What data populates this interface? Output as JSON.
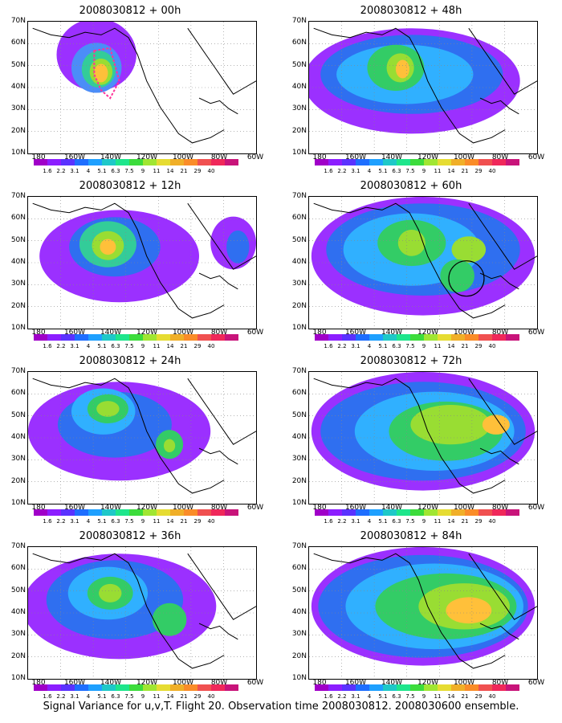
{
  "panels": [
    {
      "title": "2008030812 + 00h",
      "blobs": [
        [
          0.3,
          0.25,
          0.35,
          0.55,
          "#9b30ff"
        ],
        [
          0.3,
          0.35,
          0.22,
          0.38,
          "#4b8df8"
        ],
        [
          0.31,
          0.36,
          0.15,
          0.28,
          "#33cc99"
        ],
        [
          0.32,
          0.38,
          0.1,
          0.2,
          "#99dd33"
        ],
        [
          0.32,
          0.39,
          0.06,
          0.14,
          "#ffc03a"
        ]
      ],
      "marker": "box"
    },
    {
      "title": "2008030812 + 48h",
      "blobs": [
        [
          0.45,
          0.45,
          0.95,
          0.8,
          "#9b30ff"
        ],
        [
          0.45,
          0.4,
          0.8,
          0.6,
          "#2f6ff0"
        ],
        [
          0.42,
          0.4,
          0.6,
          0.45,
          "#30b0ff"
        ],
        [
          0.38,
          0.35,
          0.25,
          0.35,
          "#33cc66"
        ],
        [
          0.4,
          0.35,
          0.12,
          0.22,
          "#99dd33"
        ],
        [
          0.41,
          0.36,
          0.06,
          0.14,
          "#ffc03a"
        ]
      ]
    },
    {
      "title": "2008030812 + 12h",
      "blobs": [
        [
          0.4,
          0.45,
          0.7,
          0.7,
          "#9b30ff"
        ],
        [
          0.38,
          0.38,
          0.4,
          0.45,
          "#2f6ff0"
        ],
        [
          0.35,
          0.36,
          0.25,
          0.35,
          "#33cc99"
        ],
        [
          0.35,
          0.37,
          0.14,
          0.22,
          "#99dd33"
        ],
        [
          0.35,
          0.38,
          0.07,
          0.12,
          "#ffc03a"
        ],
        [
          0.9,
          0.35,
          0.2,
          0.4,
          "#9b30ff"
        ],
        [
          0.92,
          0.38,
          0.1,
          0.25,
          "#2f6ff0"
        ]
      ]
    },
    {
      "title": "2008030812 + 60h",
      "blobs": [
        [
          0.5,
          0.45,
          0.98,
          0.9,
          "#9b30ff"
        ],
        [
          0.5,
          0.4,
          0.85,
          0.7,
          "#2f6ff0"
        ],
        [
          0.45,
          0.4,
          0.6,
          0.55,
          "#30b0ff"
        ],
        [
          0.45,
          0.35,
          0.3,
          0.35,
          "#33cc66"
        ],
        [
          0.45,
          0.35,
          0.12,
          0.2,
          "#99dd33"
        ],
        [
          0.7,
          0.4,
          0.15,
          0.2,
          "#99dd33"
        ],
        [
          0.65,
          0.6,
          0.15,
          0.25,
          "#33cc66"
        ]
      ],
      "marker": "circle"
    },
    {
      "title": "2008030812 + 24h",
      "blobs": [
        [
          0.4,
          0.45,
          0.8,
          0.75,
          "#9b30ff"
        ],
        [
          0.38,
          0.4,
          0.5,
          0.5,
          "#2f6ff0"
        ],
        [
          0.33,
          0.3,
          0.28,
          0.35,
          "#30b0ff"
        ],
        [
          0.35,
          0.28,
          0.18,
          0.22,
          "#33cc66"
        ],
        [
          0.35,
          0.28,
          0.1,
          0.12,
          "#99dd33"
        ],
        [
          0.62,
          0.55,
          0.12,
          0.22,
          "#33cc66"
        ],
        [
          0.62,
          0.56,
          0.05,
          0.1,
          "#99dd33"
        ]
      ]
    },
    {
      "title": "2008030812 + 72h",
      "blobs": [
        [
          0.5,
          0.45,
          0.98,
          0.9,
          "#9b30ff"
        ],
        [
          0.5,
          0.45,
          0.9,
          0.75,
          "#2f6ff0"
        ],
        [
          0.55,
          0.45,
          0.7,
          0.6,
          "#30b0ff"
        ],
        [
          0.6,
          0.45,
          0.5,
          0.45,
          "#33cc66"
        ],
        [
          0.62,
          0.4,
          0.35,
          0.3,
          "#99dd33"
        ],
        [
          0.82,
          0.4,
          0.12,
          0.15,
          "#ffc03a"
        ]
      ]
    },
    {
      "title": "2008030812 + 36h",
      "blobs": [
        [
          0.4,
          0.45,
          0.85,
          0.8,
          "#9b30ff"
        ],
        [
          0.38,
          0.4,
          0.6,
          0.6,
          "#2f6ff0"
        ],
        [
          0.35,
          0.35,
          0.35,
          0.4,
          "#30b0ff"
        ],
        [
          0.36,
          0.35,
          0.2,
          0.25,
          "#33cc66"
        ],
        [
          0.36,
          0.35,
          0.1,
          0.14,
          "#99dd33"
        ],
        [
          0.62,
          0.55,
          0.15,
          0.25,
          "#33cc66"
        ]
      ]
    },
    {
      "title": "2008030812 + 84h",
      "blobs": [
        [
          0.5,
          0.45,
          0.98,
          0.9,
          "#9b30ff"
        ],
        [
          0.5,
          0.45,
          0.92,
          0.78,
          "#2f6ff0"
        ],
        [
          0.55,
          0.45,
          0.78,
          0.65,
          "#30b0ff"
        ],
        [
          0.6,
          0.45,
          0.62,
          0.5,
          "#33cc66"
        ],
        [
          0.68,
          0.45,
          0.4,
          0.35,
          "#99dd33"
        ],
        [
          0.7,
          0.48,
          0.2,
          0.2,
          "#ffc03a"
        ]
      ]
    }
  ],
  "lat_labels": [
    "70N",
    "60N",
    "50N",
    "40N",
    "30N",
    "20N",
    "10N"
  ],
  "lon_labels": [
    "180",
    "160W",
    "140W",
    "120W",
    "100W",
    "80W",
    "60W"
  ],
  "colorbar": {
    "colors": [
      "#a000c8",
      "#8c1eff",
      "#5a32ff",
      "#1e6eff",
      "#1ea0ff",
      "#1ec8c8",
      "#1ee68c",
      "#3cdc3c",
      "#a0e632",
      "#e6dc32",
      "#f0af28",
      "#fa8c28",
      "#f05050",
      "#f0285a",
      "#c8147a"
    ],
    "labels": [
      "1.6",
      "2.2",
      "3.1",
      "4",
      "5.1",
      "6.3",
      "7.5",
      "9",
      "11",
      "14",
      "21",
      "29",
      "40"
    ]
  },
  "chart_data": {
    "type": "heatmap",
    "title": "Signal Variance for u,v,T. Flight 20. Observation time 2008030812. 2008030600 ensemble.",
    "x_ticks": [
      "180",
      "160W",
      "140W",
      "120W",
      "100W",
      "80W",
      "60W"
    ],
    "y_ticks": [
      "70N",
      "60N",
      "50N",
      "40N",
      "30N",
      "20N",
      "10N"
    ],
    "colorbar_levels": [
      1.6,
      2.2,
      3.1,
      4,
      5.1,
      6.3,
      7.5,
      9,
      11,
      14,
      21,
      29,
      40
    ],
    "panels": [
      "2008030812 + 00h",
      "2008030812 + 48h",
      "2008030812 + 12h",
      "2008030812 + 60h",
      "2008030812 + 24h",
      "2008030812 + 72h",
      "2008030812 + 36h",
      "2008030812 + 84h"
    ]
  },
  "footer": "Signal Variance for u,v,T. Flight 20. Observation time 2008030812. 2008030600 ensemble."
}
